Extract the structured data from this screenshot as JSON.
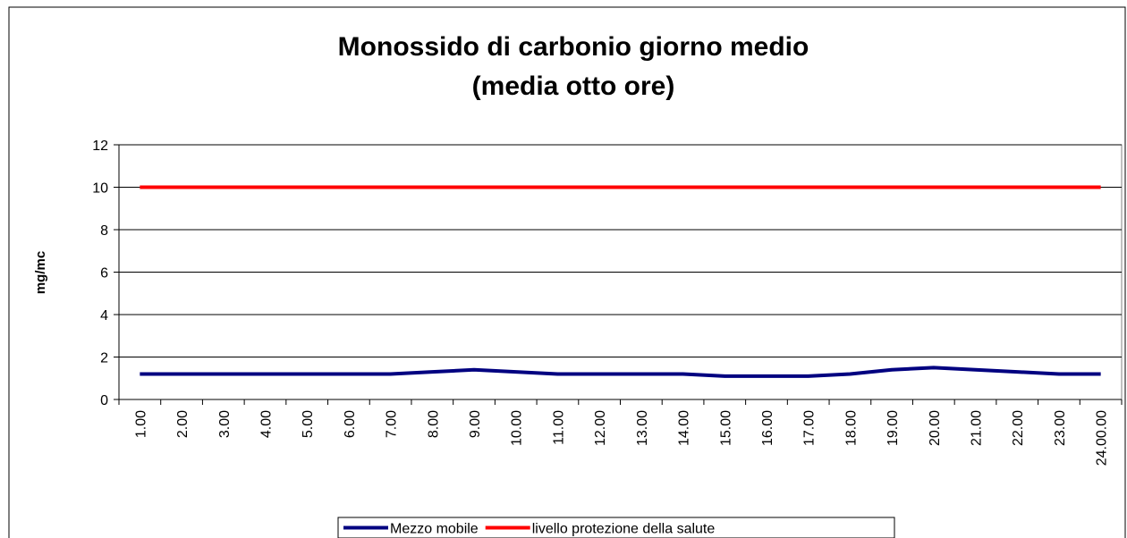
{
  "chart_data": {
    "type": "line",
    "title": [
      "Monossido di carbonio giorno medio",
      "(media otto ore)"
    ],
    "y_label": "mg/mc",
    "categories": [
      "1.00",
      "2.00",
      "3.00",
      "4.00",
      "5.00",
      "6.00",
      "7.00",
      "8.00",
      "9.00",
      "10.00",
      "11.00",
      "12.00",
      "13.00",
      "14.00",
      "15.00",
      "16.00",
      "17.00",
      "18.00",
      "19.00",
      "20.00",
      "21.00",
      "22.00",
      "23.00",
      "24.00.00"
    ],
    "series": [
      {
        "name": "Mezzo mobile",
        "color": "#000080",
        "values": [
          1.2,
          1.2,
          1.2,
          1.2,
          1.2,
          1.2,
          1.2,
          1.3,
          1.4,
          1.3,
          1.2,
          1.2,
          1.2,
          1.2,
          1.1,
          1.1,
          1.1,
          1.2,
          1.4,
          1.5,
          1.4,
          1.3,
          1.2,
          1.2
        ]
      },
      {
        "name": "livello protezione della salute",
        "color": "#ff0000",
        "values": [
          10,
          10,
          10,
          10,
          10,
          10,
          10,
          10,
          10,
          10,
          10,
          10,
          10,
          10,
          10,
          10,
          10,
          10,
          10,
          10,
          10,
          10,
          10,
          10
        ]
      }
    ],
    "ylim": [
      0,
      12
    ],
    "yticks": [
      0,
      2,
      4,
      6,
      8,
      10,
      12
    ],
    "grid": true,
    "legend": "bottom"
  }
}
